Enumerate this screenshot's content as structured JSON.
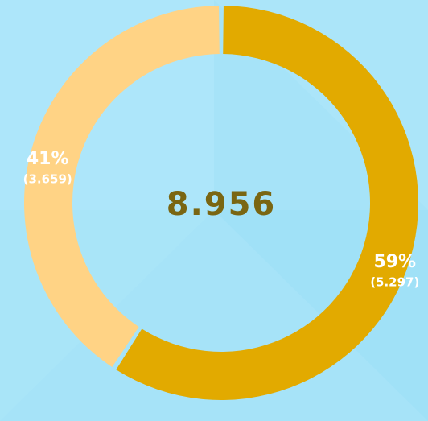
{
  "chart_data": {
    "type": "donut",
    "values": [
      5.297,
      3.659
    ],
    "value_labels": [
      "(5.297)",
      "(3.659)"
    ],
    "percents": [
      59,
      41
    ],
    "percent_labels": [
      "59%",
      "41%"
    ],
    "colors": [
      "#e2aa00",
      "#ffd385"
    ],
    "total": 8.956
  }
}
